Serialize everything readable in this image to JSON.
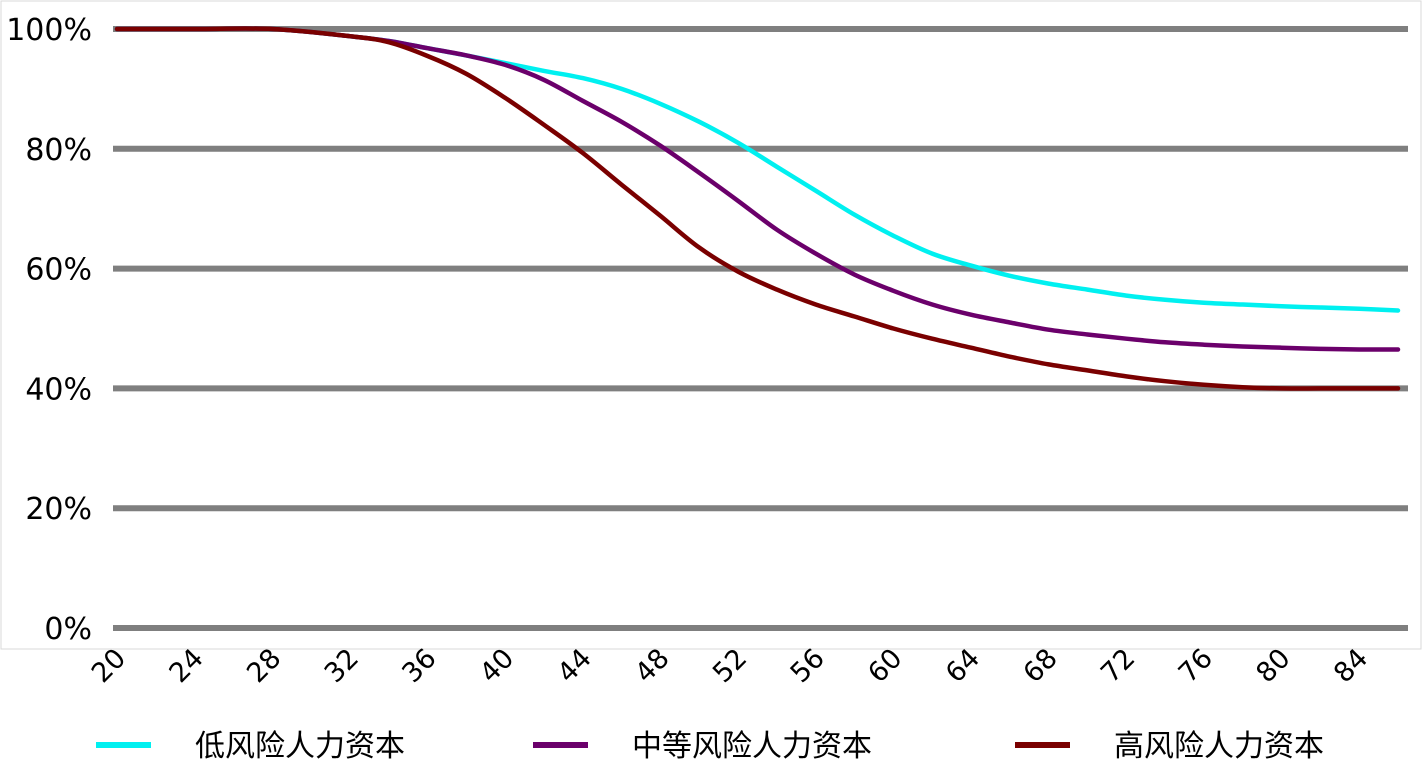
{
  "chart_data": {
    "type": "line",
    "title": "",
    "xlabel": "",
    "ylabel": "",
    "xlim": [
      20,
      87
    ],
    "ylim": [
      0,
      100
    ],
    "x_ticks": [
      "20",
      "24",
      "28",
      "32",
      "36",
      "40",
      "44",
      "48",
      "52",
      "56",
      "60",
      "64",
      "68",
      "72",
      "76",
      "80",
      "84"
    ],
    "y_ticks": [
      "0%",
      "20%",
      "40%",
      "60%",
      "80%",
      "100%"
    ],
    "y_tick_values": [
      0,
      20,
      40,
      60,
      80,
      100
    ],
    "grid": true,
    "legend_position": "bottom",
    "x": [
      20,
      24,
      28,
      32,
      34,
      36,
      38,
      40,
      42,
      44,
      46,
      48,
      50,
      52,
      54,
      56,
      58,
      60,
      62,
      64,
      66,
      68,
      70,
      72,
      74,
      76,
      78,
      80,
      82,
      84,
      86
    ],
    "series": [
      {
        "name": "低风险人力资本",
        "color": "#00f0f0",
        "values": [
          100,
          100,
          100,
          98.8,
          98,
          96.8,
          95.6,
          94.3,
          93,
          91.8,
          90,
          87.5,
          84.5,
          81,
          77,
          73,
          69,
          65.5,
          62.5,
          60.5,
          58.8,
          57.5,
          56.5,
          55.5,
          54.8,
          54.3,
          54,
          53.7,
          53.5,
          53.3,
          53
        ]
      },
      {
        "name": "中等风险人力资本",
        "color": "#6b006b",
        "values": [
          100,
          100,
          100,
          98.8,
          98,
          96.8,
          95.6,
          94,
          91.5,
          88,
          84.5,
          80.5,
          76,
          71.3,
          66.5,
          62.5,
          59,
          56.3,
          54,
          52.3,
          51,
          49.8,
          49,
          48.3,
          47.7,
          47.3,
          47,
          46.8,
          46.6,
          46.5,
          46.5
        ]
      },
      {
        "name": "高风险人力资本",
        "color": "#7a0000",
        "values": [
          100,
          100,
          100,
          98.8,
          97.8,
          95.5,
          92.5,
          88.5,
          84,
          79.3,
          74,
          68.8,
          63.5,
          59.5,
          56.5,
          54,
          52,
          50,
          48.3,
          46.8,
          45.3,
          44,
          43,
          42,
          41.2,
          40.6,
          40.2,
          40,
          40,
          40,
          40
        ]
      }
    ]
  }
}
